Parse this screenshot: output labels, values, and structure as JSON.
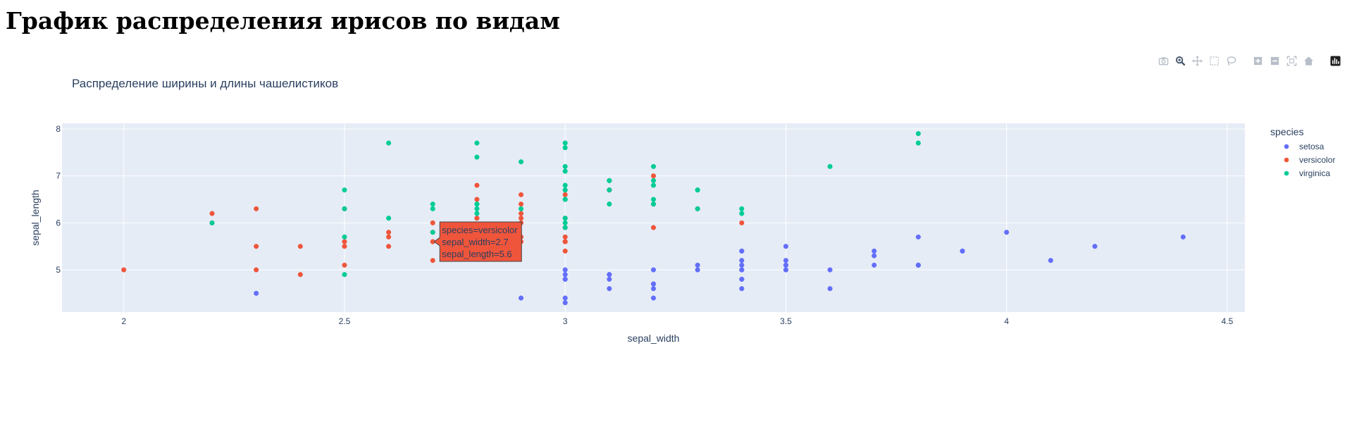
{
  "page": {
    "title": "График распределения ирисов по видам"
  },
  "modebar": {
    "buttons": [
      {
        "name": "camera-icon",
        "group": 0
      },
      {
        "name": "zoom-icon",
        "group": 0
      },
      {
        "name": "pan-icon",
        "group": 0
      },
      {
        "name": "box-select-icon",
        "group": 0
      },
      {
        "name": "lasso-select-icon",
        "group": 0
      },
      {
        "name": "zoom-in-icon",
        "group": 1
      },
      {
        "name": "zoom-out-icon",
        "group": 1
      },
      {
        "name": "autoscale-icon",
        "group": 1
      },
      {
        "name": "reset-axes-icon",
        "group": 1
      },
      {
        "name": "plotly-logo-icon",
        "group": 2
      }
    ],
    "active": "zoom-icon"
  },
  "colors": {
    "setosa": "#636efa",
    "versicolor": "#EF553B",
    "virginica": "#00cc96",
    "plot_bg": "#E5ECF6",
    "grid": "#ffffff",
    "text": "#2a3f5f"
  },
  "chart_data": {
    "type": "scatter",
    "title": "Распределение ширины и длины чашелистиков",
    "xlabel": "sepal_width",
    "ylabel": "sepal_length",
    "xlim": [
      1.86,
      4.54
    ],
    "ylim": [
      4.1,
      8.12
    ],
    "xticks": [
      2,
      2.5,
      3,
      3.5,
      4,
      4.5
    ],
    "yticks": [
      5,
      6,
      7,
      8
    ],
    "grid": true,
    "legend": {
      "title": "species",
      "position": "right"
    },
    "series": [
      {
        "name": "setosa",
        "points": [
          [
            3.5,
            5.1
          ],
          [
            3.0,
            4.9
          ],
          [
            3.2,
            4.7
          ],
          [
            3.1,
            4.6
          ],
          [
            3.6,
            5.0
          ],
          [
            3.9,
            5.4
          ],
          [
            3.4,
            4.6
          ],
          [
            3.4,
            5.0
          ],
          [
            2.9,
            4.4
          ],
          [
            3.1,
            4.9
          ],
          [
            3.7,
            5.4
          ],
          [
            3.4,
            4.8
          ],
          [
            3.0,
            4.8
          ],
          [
            3.0,
            4.3
          ],
          [
            4.0,
            5.8
          ],
          [
            4.4,
            5.7
          ],
          [
            3.9,
            5.4
          ],
          [
            3.5,
            5.1
          ],
          [
            3.8,
            5.7
          ],
          [
            3.8,
            5.1
          ],
          [
            3.4,
            5.4
          ],
          [
            3.7,
            5.1
          ],
          [
            3.6,
            4.6
          ],
          [
            3.3,
            5.1
          ],
          [
            3.4,
            4.8
          ],
          [
            3.0,
            5.0
          ],
          [
            3.4,
            5.0
          ],
          [
            3.5,
            5.2
          ],
          [
            3.4,
            5.2
          ],
          [
            3.2,
            4.7
          ],
          [
            3.1,
            4.8
          ],
          [
            3.4,
            5.4
          ],
          [
            4.1,
            5.2
          ],
          [
            4.2,
            5.5
          ],
          [
            3.2,
            5.0
          ],
          [
            3.5,
            5.5
          ],
          [
            3.1,
            4.9
          ],
          [
            3.0,
            4.4
          ],
          [
            3.4,
            5.1
          ],
          [
            3.5,
            5.0
          ],
          [
            2.3,
            4.5
          ],
          [
            3.2,
            4.4
          ],
          [
            3.5,
            5.0
          ],
          [
            3.8,
            5.1
          ],
          [
            3.0,
            4.8
          ],
          [
            3.8,
            5.1
          ],
          [
            3.2,
            4.6
          ],
          [
            3.7,
            5.3
          ],
          [
            3.3,
            5.0
          ]
        ]
      },
      {
        "name": "versicolor",
        "points": [
          [
            3.2,
            7.0
          ],
          [
            3.2,
            6.4
          ],
          [
            3.1,
            6.9
          ],
          [
            2.3,
            5.5
          ],
          [
            2.8,
            6.5
          ],
          [
            2.8,
            5.7
          ],
          [
            3.3,
            6.3
          ],
          [
            2.4,
            4.9
          ],
          [
            2.9,
            6.6
          ],
          [
            2.7,
            5.2
          ],
          [
            2.0,
            5.0
          ],
          [
            3.0,
            5.9
          ],
          [
            2.2,
            6.0
          ],
          [
            2.9,
            6.1
          ],
          [
            2.9,
            5.6
          ],
          [
            3.1,
            6.7
          ],
          [
            3.0,
            5.6
          ],
          [
            2.7,
            5.8
          ],
          [
            2.2,
            6.2
          ],
          [
            2.5,
            5.6
          ],
          [
            3.2,
            5.9
          ],
          [
            2.8,
            6.1
          ],
          [
            2.5,
            6.3
          ],
          [
            2.8,
            6.1
          ],
          [
            2.9,
            6.4
          ],
          [
            3.0,
            6.6
          ],
          [
            2.8,
            6.8
          ],
          [
            3.0,
            6.7
          ],
          [
            2.9,
            6.0
          ],
          [
            2.6,
            5.7
          ],
          [
            2.4,
            5.5
          ],
          [
            2.7,
            6.0
          ],
          [
            3.0,
            5.4
          ],
          [
            3.4,
            6.0
          ],
          [
            3.1,
            6.7
          ],
          [
            2.3,
            6.3
          ],
          [
            3.0,
            5.6
          ],
          [
            2.5,
            5.5
          ],
          [
            2.6,
            5.5
          ],
          [
            3.0,
            6.1
          ],
          [
            2.6,
            5.8
          ],
          [
            2.3,
            5.0
          ],
          [
            2.7,
            5.6
          ],
          [
            3.0,
            5.7
          ],
          [
            2.9,
            6.2
          ],
          [
            2.9,
            5.7
          ],
          [
            2.5,
            5.1
          ],
          [
            2.8,
            5.7
          ],
          [
            2.7,
            5.6
          ]
        ]
      },
      {
        "name": "virginica",
        "points": [
          [
            3.3,
            6.3
          ],
          [
            2.7,
            5.8
          ],
          [
            3.0,
            7.1
          ],
          [
            2.9,
            6.3
          ],
          [
            3.0,
            6.5
          ],
          [
            3.0,
            7.6
          ],
          [
            2.5,
            4.9
          ],
          [
            2.9,
            7.3
          ],
          [
            2.5,
            6.7
          ],
          [
            3.6,
            7.2
          ],
          [
            3.2,
            6.5
          ],
          [
            2.7,
            6.4
          ],
          [
            3.0,
            6.8
          ],
          [
            2.5,
            5.7
          ],
          [
            2.8,
            5.8
          ],
          [
            3.2,
            6.4
          ],
          [
            3.0,
            6.5
          ],
          [
            3.8,
            7.7
          ],
          [
            2.6,
            7.7
          ],
          [
            2.2,
            6.0
          ],
          [
            3.2,
            6.9
          ],
          [
            2.8,
            5.6
          ],
          [
            2.8,
            7.7
          ],
          [
            2.7,
            6.3
          ],
          [
            3.3,
            6.7
          ],
          [
            3.2,
            7.2
          ],
          [
            2.8,
            6.2
          ],
          [
            3.0,
            6.1
          ],
          [
            2.8,
            6.4
          ],
          [
            3.0,
            7.2
          ],
          [
            2.8,
            7.4
          ],
          [
            3.8,
            7.9
          ],
          [
            2.8,
            6.4
          ],
          [
            2.8,
            6.3
          ],
          [
            2.6,
            6.1
          ],
          [
            3.0,
            7.7
          ],
          [
            3.4,
            6.3
          ],
          [
            3.1,
            6.4
          ],
          [
            3.0,
            6.0
          ],
          [
            3.1,
            6.9
          ],
          [
            3.1,
            6.7
          ],
          [
            3.1,
            6.9
          ],
          [
            3.2,
            6.8
          ],
          [
            3.3,
            6.7
          ],
          [
            3.0,
            6.7
          ],
          [
            2.5,
            6.3
          ],
          [
            3.0,
            6.5
          ],
          [
            3.4,
            6.2
          ],
          [
            3.0,
            5.9
          ]
        ]
      }
    ],
    "hover": {
      "species": "versicolor",
      "x": 2.7,
      "y": 5.6,
      "lines": [
        "species=versicolor",
        "sepal_width=2.7",
        "sepal_length=5.6"
      ]
    }
  }
}
